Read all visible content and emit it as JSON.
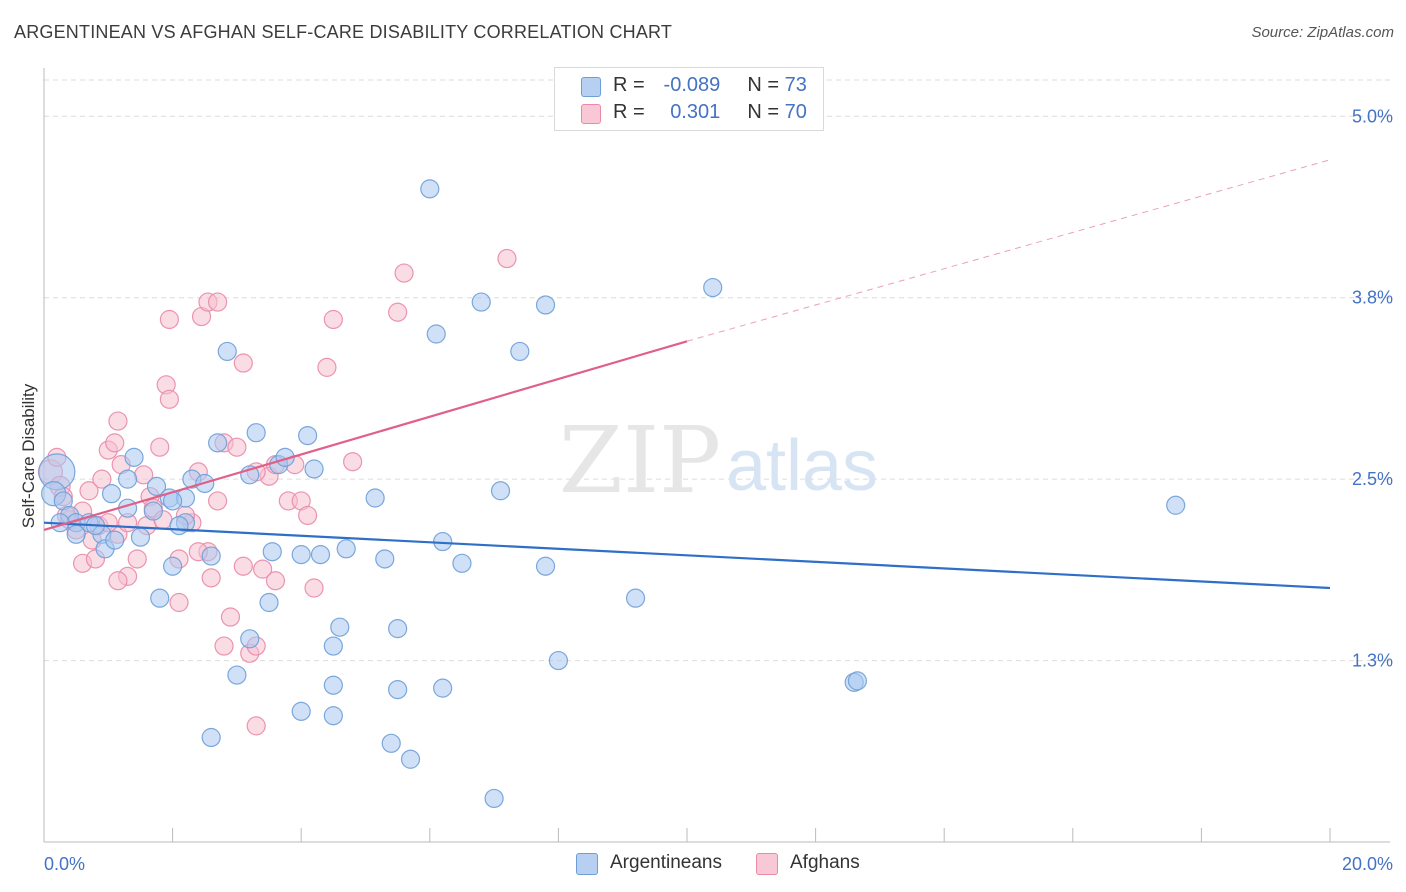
{
  "title": "ARGENTINEAN VS AFGHAN SELF-CARE DISABILITY CORRELATION CHART",
  "source": "Source: ZipAtlas.com",
  "watermark": {
    "zip": "ZIP",
    "atlas": "atlas"
  },
  "legend": {
    "rows": [
      {
        "r_label": "R =",
        "r_value": "-0.089",
        "n_label": "N =",
        "n_value": "73"
      },
      {
        "r_label": "R =",
        "r_value": "0.301",
        "n_label": "N =",
        "n_value": "70"
      }
    ]
  },
  "bottom_legend": [
    "Argentineans",
    "Afghans"
  ],
  "colors": {
    "blue_fill": "#a9c8f0",
    "blue_stroke": "#6d9ed8",
    "blue_line": "#2f6fc8",
    "pink_fill": "#f6bfd0",
    "pink_stroke": "#e98aa8",
    "pink_line": "#e0608a",
    "tick_label": "#4472c4",
    "grid": "#dcdcdc"
  },
  "chart_data": {
    "type": "scatter",
    "title": "ARGENTINEAN VS AFGHAN SELF-CARE DISABILITY CORRELATION CHART",
    "xlabel": "",
    "ylabel": "Self-Care Disability",
    "xlim": [
      0,
      20
    ],
    "ylim": [
      0,
      5.25
    ],
    "x_tick_labels": [
      "0.0%",
      "20.0%"
    ],
    "y_ticks": [
      1.25,
      2.5,
      3.75,
      5.0
    ],
    "y_tick_labels": [
      "1.3%",
      "2.5%",
      "3.8%",
      "5.0%"
    ],
    "grid": true,
    "legend_position": "top-center",
    "series": [
      {
        "name": "Argentineans",
        "r": -0.089,
        "n": 73,
        "trend": {
          "x": [
            0,
            20
          ],
          "y": [
            2.2,
            1.75
          ]
        },
        "points": [
          [
            0.2,
            2.55,
            18
          ],
          [
            0.15,
            2.4,
            12
          ],
          [
            0.3,
            2.35,
            9
          ],
          [
            0.4,
            2.25,
            9
          ],
          [
            0.5,
            2.2,
            9
          ],
          [
            0.7,
            2.2,
            9
          ],
          [
            0.9,
            2.12,
            9
          ],
          [
            0.95,
            2.02,
            9
          ],
          [
            1.1,
            2.08,
            9
          ],
          [
            1.3,
            2.3,
            9
          ],
          [
            1.05,
            2.4,
            9
          ],
          [
            1.5,
            2.1,
            9
          ],
          [
            1.4,
            2.65,
            9
          ],
          [
            1.75,
            2.45,
            9
          ],
          [
            1.7,
            2.28,
            9
          ],
          [
            1.95,
            2.37,
            9
          ],
          [
            2.2,
            2.37,
            9
          ],
          [
            2.3,
            2.5,
            9
          ],
          [
            2.5,
            2.47,
            9
          ],
          [
            2.2,
            2.2,
            9
          ],
          [
            2.0,
            1.9,
            9
          ],
          [
            2.7,
            2.75,
            9
          ],
          [
            2.85,
            3.38,
            9
          ],
          [
            3.2,
            2.53,
            9
          ],
          [
            3.3,
            2.82,
            9
          ],
          [
            3.65,
            2.6,
            9
          ],
          [
            3.75,
            2.65,
            9
          ],
          [
            4.1,
            2.8,
            9
          ],
          [
            4.2,
            2.57,
            9
          ],
          [
            3.5,
            1.65,
            9
          ],
          [
            3.55,
            2.0,
            9
          ],
          [
            4.0,
            1.98,
            9
          ],
          [
            4.3,
            1.98,
            9
          ],
          [
            4.7,
            2.02,
            9
          ],
          [
            5.15,
            2.37,
            9
          ],
          [
            5.3,
            1.95,
            9
          ],
          [
            6.2,
            2.07,
            9
          ],
          [
            6.5,
            1.92,
            9
          ],
          [
            7.1,
            2.42,
            9
          ],
          [
            7.4,
            3.38,
            9
          ],
          [
            7.8,
            3.7,
            9
          ],
          [
            6.0,
            4.5,
            9
          ],
          [
            6.8,
            3.72,
            9
          ],
          [
            6.1,
            3.5,
            9
          ],
          [
            10.4,
            3.82,
            9
          ],
          [
            2.6,
            1.97,
            9
          ],
          [
            1.8,
            1.68,
            9
          ],
          [
            3.2,
            1.4,
            9
          ],
          [
            4.5,
            1.35,
            9
          ],
          [
            4.6,
            1.48,
            9
          ],
          [
            5.5,
            1.47,
            9
          ],
          [
            3.0,
            1.15,
            9
          ],
          [
            4.5,
            1.08,
            9
          ],
          [
            5.5,
            1.05,
            9
          ],
          [
            6.2,
            1.06,
            9
          ],
          [
            4.0,
            0.9,
            9
          ],
          [
            4.5,
            0.87,
            9
          ],
          [
            2.6,
            0.72,
            9
          ],
          [
            5.4,
            0.68,
            9
          ],
          [
            5.7,
            0.57,
            9
          ],
          [
            7.0,
            0.3,
            9
          ],
          [
            8.0,
            1.25,
            9
          ],
          [
            7.8,
            1.9,
            9
          ],
          [
            9.2,
            1.68,
            9
          ],
          [
            12.6,
            1.1,
            9
          ],
          [
            12.65,
            1.11,
            9
          ],
          [
            17.6,
            2.32,
            9
          ],
          [
            0.5,
            2.12,
            9
          ],
          [
            0.8,
            2.18,
            9
          ],
          [
            1.3,
            2.5,
            9
          ],
          [
            2.0,
            2.35,
            9
          ],
          [
            2.1,
            2.18,
            9
          ],
          [
            0.25,
            2.2,
            9
          ]
        ]
      },
      {
        "name": "Afghans",
        "r": 0.301,
        "n": 70,
        "trend": {
          "x": [
            0,
            10
          ],
          "y": [
            2.15,
            3.45
          ]
        },
        "trend_extension": {
          "x": [
            10,
            20
          ],
          "y": [
            3.45,
            4.7
          ]
        },
        "points": [
          [
            0.1,
            2.55,
            12
          ],
          [
            0.25,
            2.45,
            10
          ],
          [
            0.3,
            2.38,
            9
          ],
          [
            0.4,
            2.22,
            9
          ],
          [
            0.5,
            2.15,
            9
          ],
          [
            0.6,
            2.28,
            9
          ],
          [
            0.7,
            2.42,
            9
          ],
          [
            0.75,
            2.08,
            9
          ],
          [
            0.85,
            2.18,
            9
          ],
          [
            0.6,
            1.92,
            9
          ],
          [
            0.9,
            2.5,
            9
          ],
          [
            1.0,
            2.7,
            9
          ],
          [
            1.1,
            2.75,
            9
          ],
          [
            1.15,
            2.12,
            9
          ],
          [
            1.3,
            2.2,
            9
          ],
          [
            1.2,
            2.6,
            9
          ],
          [
            1.15,
            2.9,
            9
          ],
          [
            1.3,
            1.83,
            9
          ],
          [
            1.15,
            1.8,
            9
          ],
          [
            1.6,
            2.18,
            9
          ],
          [
            1.65,
            2.38,
            9
          ],
          [
            1.7,
            2.3,
            9
          ],
          [
            1.8,
            2.72,
            9
          ],
          [
            1.85,
            2.22,
            9
          ],
          [
            1.55,
            2.53,
            9
          ],
          [
            1.9,
            3.15,
            9
          ],
          [
            1.95,
            3.05,
            9
          ],
          [
            1.95,
            3.6,
            9
          ],
          [
            2.1,
            1.95,
            9
          ],
          [
            2.1,
            1.65,
            9
          ],
          [
            2.3,
            2.2,
            9
          ],
          [
            2.4,
            2.55,
            9
          ],
          [
            2.45,
            3.62,
            9
          ],
          [
            2.55,
            3.72,
            9
          ],
          [
            2.7,
            3.72,
            9
          ],
          [
            2.8,
            2.75,
            9
          ],
          [
            3.0,
            2.72,
            9
          ],
          [
            3.1,
            3.3,
            9
          ],
          [
            2.7,
            2.35,
            9
          ],
          [
            2.6,
            1.82,
            9
          ],
          [
            2.8,
            1.35,
            9
          ],
          [
            3.1,
            1.9,
            9
          ],
          [
            3.2,
            1.3,
            9
          ],
          [
            3.4,
            1.88,
            9
          ],
          [
            3.5,
            2.52,
            9
          ],
          [
            3.6,
            2.6,
            9
          ],
          [
            3.6,
            1.8,
            9
          ],
          [
            3.8,
            2.35,
            9
          ],
          [
            3.9,
            2.6,
            9
          ],
          [
            4.0,
            2.35,
            9
          ],
          [
            4.1,
            2.25,
            9
          ],
          [
            4.2,
            1.75,
            9
          ],
          [
            4.4,
            3.27,
            9
          ],
          [
            4.5,
            3.6,
            9
          ],
          [
            4.8,
            2.62,
            9
          ],
          [
            5.5,
            3.65,
            9
          ],
          [
            5.6,
            3.92,
            9
          ],
          [
            7.2,
            4.02,
            9
          ],
          [
            3.3,
            1.35,
            9
          ],
          [
            2.9,
            1.55,
            9
          ],
          [
            3.3,
            0.8,
            9
          ],
          [
            2.2,
            2.25,
            9
          ],
          [
            2.55,
            2.0,
            9
          ],
          [
            2.4,
            2.0,
            9
          ],
          [
            1.0,
            2.2,
            9
          ],
          [
            0.2,
            2.65,
            9
          ],
          [
            0.8,
            1.95,
            9
          ],
          [
            1.45,
            1.95,
            9
          ],
          [
            3.3,
            2.55,
            9
          ],
          [
            0.35,
            2.25,
            9
          ]
        ]
      }
    ]
  }
}
